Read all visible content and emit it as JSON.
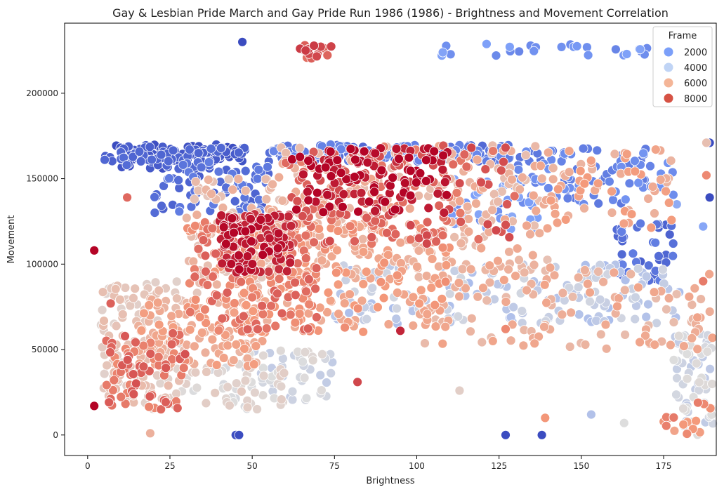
{
  "chart_data": {
    "type": "scatter",
    "title": "Gay & Lesbian Pride March and Gay Pride Run 1986 (1986) - Brightness and Movement Correlation",
    "xlabel": "Brightness",
    "ylabel": "Movement",
    "xlim": [
      -7,
      191
    ],
    "ylim": [
      -12000,
      241000
    ],
    "xticks": [
      0,
      25,
      50,
      75,
      100,
      125,
      150,
      175
    ],
    "yticks": [
      0,
      50000,
      100000,
      150000,
      200000
    ],
    "grid": false,
    "legend": {
      "title": "Frame",
      "placement": "top-right",
      "entries": [
        {
          "label": "2000",
          "color": "#7b9ff9"
        },
        {
          "label": "4000",
          "color": "#c0d4f5"
        },
        {
          "label": "6000",
          "color": "#f4b597"
        },
        {
          "label": "8000",
          "color": "#d65244"
        }
      ]
    },
    "hue": "frame",
    "hue_range": [
      0,
      9000
    ],
    "colormap": "coolwarm",
    "clusters": [
      {
        "frame": 300,
        "x": [
          5,
          48
        ],
        "y": [
          160000,
          170000
        ],
        "count": 120
      },
      {
        "frame": 500,
        "x": [
          10,
          40
        ],
        "y": [
          155000,
          168000
        ],
        "count": 40
      },
      {
        "frame": 900,
        "x": [
          20,
          55
        ],
        "y": [
          130000,
          160000
        ],
        "count": 80
      },
      {
        "frame": 1200,
        "x": [
          55,
          130
        ],
        "y": [
          160000,
          170000
        ],
        "count": 180
      },
      {
        "frame": 1500,
        "x": [
          125,
          178
        ],
        "y": [
          135000,
          168000
        ],
        "count": 90
      },
      {
        "frame": 1000,
        "x": [
          160,
          178
        ],
        "y": [
          90000,
          125000
        ],
        "count": 40
      },
      {
        "frame": 2000,
        "x": [
          100,
          172
        ],
        "y": [
          222000,
          229000
        ],
        "count": 26
      },
      {
        "frame": 2200,
        "x": [
          110,
          140
        ],
        "y": [
          120000,
          150000
        ],
        "count": 40
      },
      {
        "frame": 3800,
        "x": [
          75,
          180
        ],
        "y": [
          65000,
          100000
        ],
        "count": 160
      },
      {
        "frame": 4200,
        "x": [
          178,
          190
        ],
        "y": [
          0,
          60000
        ],
        "count": 70
      },
      {
        "frame": 4300,
        "x": [
          45,
          75
        ],
        "y": [
          20000,
          50000
        ],
        "count": 60
      },
      {
        "frame": 4800,
        "x": [
          28,
          60
        ],
        "y": [
          15000,
          40000
        ],
        "count": 50
      },
      {
        "frame": 5200,
        "x": [
          4,
          30
        ],
        "y": [
          15000,
          90000
        ],
        "count": 140
      },
      {
        "frame": 5600,
        "x": [
          30,
          60
        ],
        "y": [
          80000,
          150000
        ],
        "count": 120
      },
      {
        "frame": 5900,
        "x": [
          55,
          140
        ],
        "y": [
          95000,
          170000
        ],
        "count": 260
      },
      {
        "frame": 6000,
        "x": [
          100,
          190
        ],
        "y": [
          50000,
          100000
        ],
        "count": 120
      },
      {
        "frame": 6200,
        "x": [
          15,
          55
        ],
        "y": [
          40000,
          80000
        ],
        "count": 120
      },
      {
        "frame": 6300,
        "x": [
          140,
          178
        ],
        "y": [
          120000,
          170000
        ],
        "count": 60
      },
      {
        "frame": 6500,
        "x": [
          45,
          110
        ],
        "y": [
          60000,
          125000
        ],
        "count": 180
      },
      {
        "frame": 7200,
        "x": [
          30,
          70
        ],
        "y": [
          60000,
          125000
        ],
        "count": 160
      },
      {
        "frame": 7400,
        "x": [
          5,
          30
        ],
        "y": [
          15000,
          60000
        ],
        "count": 70
      },
      {
        "frame": 7600,
        "x": [
          60,
          130
        ],
        "y": [
          110000,
          170000
        ],
        "count": 150
      },
      {
        "frame": 8600,
        "x": [
          40,
          62
        ],
        "y": [
          95000,
          130000
        ],
        "count": 120
      },
      {
        "frame": 8800,
        "x": [
          62,
          110
        ],
        "y": [
          130000,
          168000
        ],
        "count": 120
      },
      {
        "frame": 7800,
        "x": [
          64,
          74
        ],
        "y": [
          220000,
          229000
        ],
        "count": 16
      },
      {
        "frame": 6800,
        "x": [
          175,
          190
        ],
        "y": [
          0,
          20000
        ],
        "count": 16
      }
    ],
    "points": [
      {
        "x": 47,
        "y": 230000,
        "frame": 0
      },
      {
        "x": 45,
        "y": 0,
        "frame": 0
      },
      {
        "x": 46,
        "y": 0,
        "frame": 0
      },
      {
        "x": 127,
        "y": 0,
        "frame": 0
      },
      {
        "x": 138,
        "y": 0,
        "frame": 0
      },
      {
        "x": 189,
        "y": 171000,
        "frame": 0
      },
      {
        "x": 189,
        "y": 139000,
        "frame": 0
      },
      {
        "x": 2,
        "y": 108000,
        "frame": 9000
      },
      {
        "x": 2,
        "y": 17000,
        "frame": 9000
      },
      {
        "x": 12,
        "y": 139000,
        "frame": 7500
      },
      {
        "x": 82,
        "y": 31000,
        "frame": 8000
      },
      {
        "x": 113,
        "y": 26000,
        "frame": 5000
      },
      {
        "x": 139,
        "y": 10000,
        "frame": 6800
      },
      {
        "x": 153,
        "y": 12000,
        "frame": 3500
      },
      {
        "x": 163,
        "y": 7000,
        "frame": 4500
      },
      {
        "x": 19,
        "y": 1000,
        "frame": 6000
      },
      {
        "x": 188,
        "y": 171000,
        "frame": 5500
      },
      {
        "x": 188,
        "y": 152000,
        "frame": 7000
      },
      {
        "x": 187,
        "y": 122000,
        "frame": 2500
      },
      {
        "x": 127,
        "y": 62000,
        "frame": 7000
      },
      {
        "x": 95,
        "y": 61000,
        "frame": 8500
      },
      {
        "x": 7,
        "y": 77000,
        "frame": 7600
      },
      {
        "x": 179,
        "y": 135000,
        "frame": 2700
      },
      {
        "x": 187,
        "y": 90000,
        "frame": 7200
      }
    ]
  }
}
